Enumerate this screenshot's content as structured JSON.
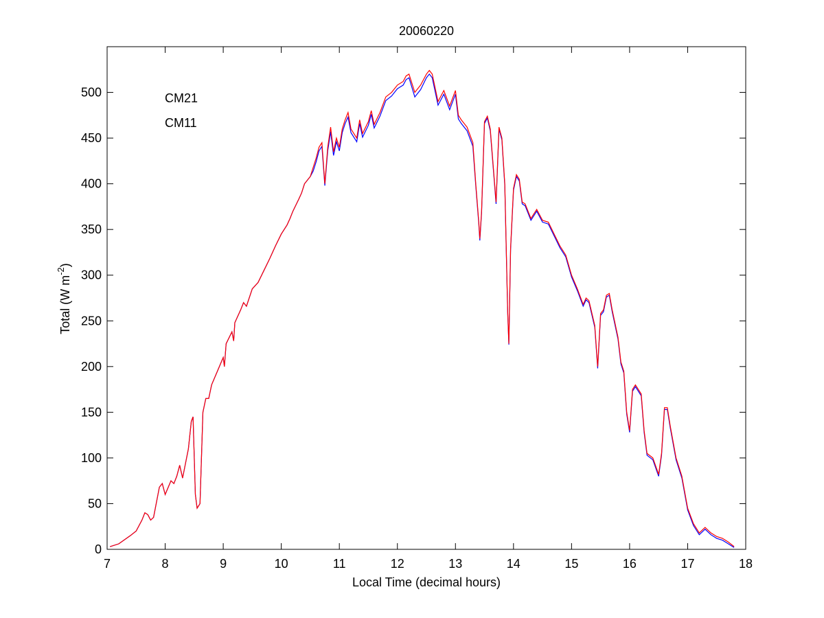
{
  "chart_data": {
    "type": "line",
    "title": "20060220",
    "x_label": "Local Time (decimal hours)",
    "y_label": {
      "text": "Total (W m",
      "superscript": "-2",
      "suffix": ")"
    },
    "x": [
      7.05,
      7.2,
      7.4,
      7.5,
      7.6,
      7.65,
      7.7,
      7.75,
      7.8,
      7.9,
      7.95,
      8.0,
      8.1,
      8.15,
      8.2,
      8.25,
      8.3,
      8.4,
      8.45,
      8.48,
      8.52,
      8.55,
      8.6,
      8.65,
      8.7,
      8.75,
      8.8,
      8.9,
      9.0,
      9.02,
      9.05,
      9.15,
      9.18,
      9.2,
      9.3,
      9.35,
      9.4,
      9.5,
      9.6,
      9.7,
      9.8,
      9.9,
      10.0,
      10.1,
      10.15,
      10.2,
      10.3,
      10.35,
      10.4,
      10.5,
      10.55,
      10.6,
      10.65,
      10.7,
      10.75,
      10.8,
      10.85,
      10.9,
      10.95,
      11.0,
      11.05,
      11.1,
      11.15,
      11.2,
      11.3,
      11.35,
      11.4,
      11.5,
      11.55,
      11.6,
      11.7,
      11.8,
      11.9,
      12.0,
      12.1,
      12.15,
      12.2,
      12.3,
      12.4,
      12.5,
      12.55,
      12.6,
      12.7,
      12.8,
      12.9,
      13.0,
      13.05,
      13.1,
      13.2,
      13.3,
      13.35,
      13.4,
      13.42,
      13.45,
      13.5,
      13.55,
      13.6,
      13.65,
      13.7,
      13.75,
      13.8,
      13.85,
      13.9,
      13.92,
      13.95,
      14.0,
      14.05,
      14.1,
      14.15,
      14.2,
      14.3,
      14.4,
      14.5,
      14.6,
      14.7,
      14.8,
      14.9,
      15.0,
      15.1,
      15.2,
      15.25,
      15.3,
      15.4,
      15.45,
      15.5,
      15.55,
      15.6,
      15.65,
      15.7,
      15.8,
      15.85,
      15.9,
      15.95,
      16.0,
      16.05,
      16.1,
      16.2,
      16.25,
      16.3,
      16.4,
      16.5,
      16.55,
      16.6,
      16.65,
      16.7,
      16.8,
      16.9,
      17.0,
      17.1,
      17.2,
      17.3,
      17.4,
      17.5,
      17.6,
      17.7,
      17.8
    ],
    "series": [
      {
        "name": "CM21",
        "color": "#0000ff",
        "values": [
          3,
          6,
          15,
          20,
          32,
          40,
          38,
          32,
          35,
          68,
          72,
          60,
          75,
          72,
          80,
          92,
          78,
          110,
          140,
          145,
          60,
          45,
          50,
          150,
          165,
          165,
          180,
          195,
          210,
          200,
          225,
          238,
          228,
          248,
          262,
          270,
          266,
          285,
          292,
          305,
          318,
          332,
          345,
          355,
          362,
          370,
          383,
          390,
          400,
          408,
          414,
          424,
          436,
          441,
          398,
          436,
          457,
          431,
          446,
          436,
          456,
          466,
          473,
          456,
          446,
          466,
          451,
          464,
          476,
          461,
          474,
          491,
          496,
          504,
          508,
          514,
          516,
          495,
          503,
          516,
          520,
          516,
          486,
          498,
          481,
          498,
          471,
          466,
          458,
          441,
          398,
          358,
          338,
          368,
          466,
          472,
          458,
          418,
          378,
          460,
          448,
          398,
          258,
          224,
          328,
          393,
          408,
          403,
          378,
          376,
          360,
          370,
          358,
          356,
          343,
          330,
          320,
          298,
          283,
          266,
          273,
          270,
          243,
          198,
          256,
          260,
          276,
          278,
          260,
          230,
          203,
          193,
          148,
          128,
          173,
          178,
          168,
          128,
          103,
          98,
          80,
          103,
          153,
          153,
          133,
          98,
          78,
          43,
          26,
          16,
          22,
          16,
          12,
          10,
          6,
          2
        ]
      },
      {
        "name": "CM11",
        "color": "#ff0000",
        "values": [
          3,
          6,
          15,
          20,
          32,
          40,
          38,
          32,
          35,
          68,
          72,
          60,
          75,
          72,
          80,
          92,
          78,
          110,
          140,
          145,
          60,
          45,
          50,
          150,
          165,
          165,
          180,
          195,
          210,
          200,
          225,
          238,
          228,
          248,
          262,
          270,
          266,
          285,
          292,
          305,
          318,
          332,
          345,
          355,
          362,
          370,
          383,
          390,
          400,
          408,
          418,
          428,
          440,
          445,
          400,
          440,
          462,
          435,
          450,
          440,
          460,
          470,
          478,
          460,
          450,
          470,
          455,
          468,
          480,
          465,
          478,
          495,
          500,
          508,
          512,
          518,
          520,
          500,
          508,
          520,
          524,
          520,
          490,
          502,
          485,
          502,
          475,
          470,
          462,
          445,
          400,
          360,
          340,
          370,
          468,
          474,
          460,
          420,
          380,
          462,
          450,
          400,
          260,
          225,
          330,
          395,
          410,
          405,
          380,
          378,
          362,
          372,
          360,
          358,
          345,
          332,
          322,
          300,
          285,
          268,
          275,
          272,
          245,
          200,
          258,
          262,
          278,
          280,
          262,
          232,
          205,
          195,
          150,
          130,
          175,
          180,
          170,
          130,
          105,
          100,
          82,
          105,
          155,
          155,
          135,
          100,
          80,
          45,
          28,
          18,
          24,
          18,
          14,
          12,
          8,
          3
        ]
      }
    ],
    "xlim": [
      7,
      18
    ],
    "xticks": [
      7,
      8,
      9,
      10,
      11,
      12,
      13,
      14,
      15,
      16,
      17,
      18
    ],
    "ylim": [
      0,
      550
    ],
    "yticks": [
      0,
      50,
      100,
      150,
      200,
      250,
      300,
      350,
      400,
      450,
      500
    ],
    "legend": "upper left",
    "grid": false
  }
}
